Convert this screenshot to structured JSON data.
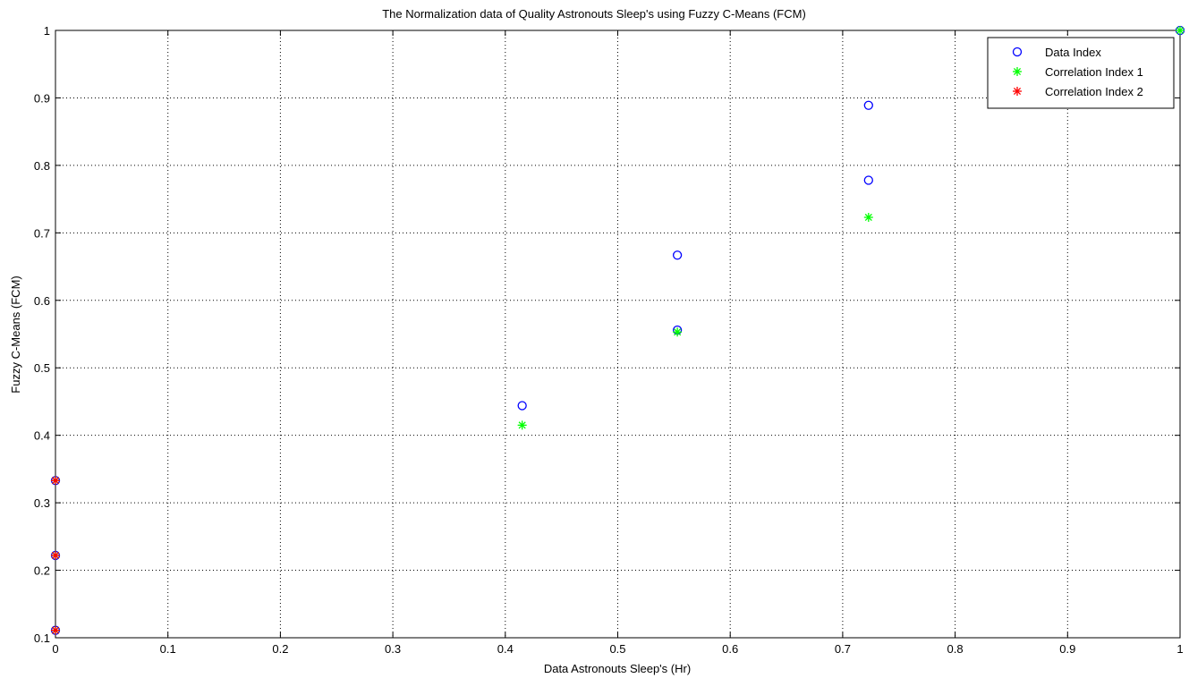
{
  "chart_data": {
    "type": "scatter",
    "title": "The Normalization data of Quality Astronouts Sleep's using Fuzzy C-Means (FCM)",
    "xlabel": "Data Astronouts Sleep's (Hr)",
    "ylabel": "Fuzzy C-Means (FCM)",
    "xlim": [
      0,
      1
    ],
    "ylim": [
      0.1,
      1
    ],
    "x_ticks": [
      "0",
      "0.1",
      "0.2",
      "0.3",
      "0.4",
      "0.5",
      "0.6",
      "0.7",
      "0.8",
      "0.9",
      "1"
    ],
    "y_ticks": [
      "0.1",
      "0.2",
      "0.3",
      "0.4",
      "0.5",
      "0.6",
      "0.7",
      "0.8",
      "0.9",
      "1"
    ],
    "grid": true,
    "legend_position": "top-right",
    "series": [
      {
        "name": "Data Index",
        "marker": "circle",
        "color": "#0000ff",
        "points": [
          [
            0,
            0.111
          ],
          [
            0,
            0.222
          ],
          [
            0,
            0.333
          ],
          [
            0.415,
            0.444
          ],
          [
            0.553,
            0.556
          ],
          [
            0.553,
            0.667
          ],
          [
            0.723,
            0.778
          ],
          [
            0.723,
            0.889
          ],
          [
            1.0,
            1.0
          ]
        ]
      },
      {
        "name": "Correlation Index 1",
        "marker": "star",
        "color": "#00ff00",
        "points": [
          [
            0,
            0.111
          ],
          [
            0,
            0.222
          ],
          [
            0,
            0.333
          ],
          [
            0.415,
            0.415
          ],
          [
            0.553,
            0.553
          ],
          [
            0.723,
            0.723
          ],
          [
            1.0,
            1.0
          ]
        ]
      },
      {
        "name": "Correlation Index 2",
        "marker": "star",
        "color": "#ff0000",
        "points": [
          [
            0,
            0.111
          ],
          [
            0,
            0.222
          ],
          [
            0,
            0.333
          ]
        ]
      }
    ]
  }
}
